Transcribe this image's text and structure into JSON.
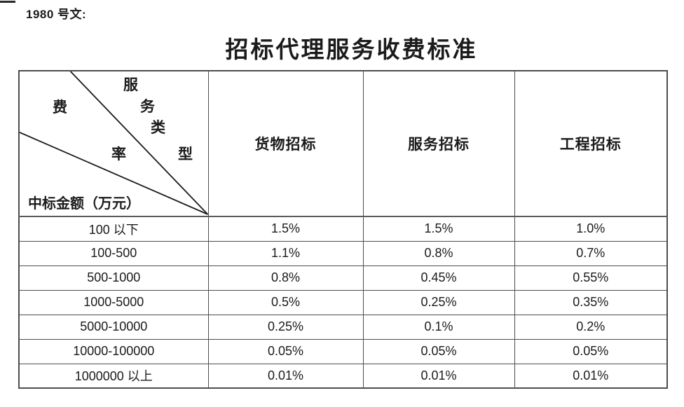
{
  "doc": {
    "ref_label": "1980 号文:",
    "title": "招标代理服务收费标准"
  },
  "table": {
    "corner": {
      "col_axis_chars": [
        "服",
        "务",
        "类",
        "型"
      ],
      "rate_axis_chars": [
        "费",
        "率"
      ],
      "row_axis_label": "中标金额（万元）"
    },
    "columns": [
      "货物招标",
      "服务招标",
      "工程招标"
    ],
    "rows": [
      {
        "range": "100 以下",
        "values": [
          "1.5%",
          "1.5%",
          "1.0%"
        ]
      },
      {
        "range": "100-500",
        "values": [
          "1.1%",
          "0.8%",
          "0.7%"
        ]
      },
      {
        "range": "500-1000",
        "values": [
          "0.8%",
          "0.45%",
          "0.55%"
        ]
      },
      {
        "range": "1000-5000",
        "values": [
          "0.5%",
          "0.25%",
          "0.35%"
        ]
      },
      {
        "range": "5000-10000",
        "values": [
          "0.25%",
          "0.1%",
          "0.2%"
        ]
      },
      {
        "range": "10000-100000",
        "values": [
          "0.05%",
          "0.05%",
          "0.05%"
        ]
      },
      {
        "range": "1000000 以上",
        "values": [
          "0.01%",
          "0.01%",
          "0.01%"
        ]
      }
    ]
  },
  "colors": {
    "border": "#4d4d4d",
    "text": "#1b1b1b",
    "background": "#ffffff"
  }
}
